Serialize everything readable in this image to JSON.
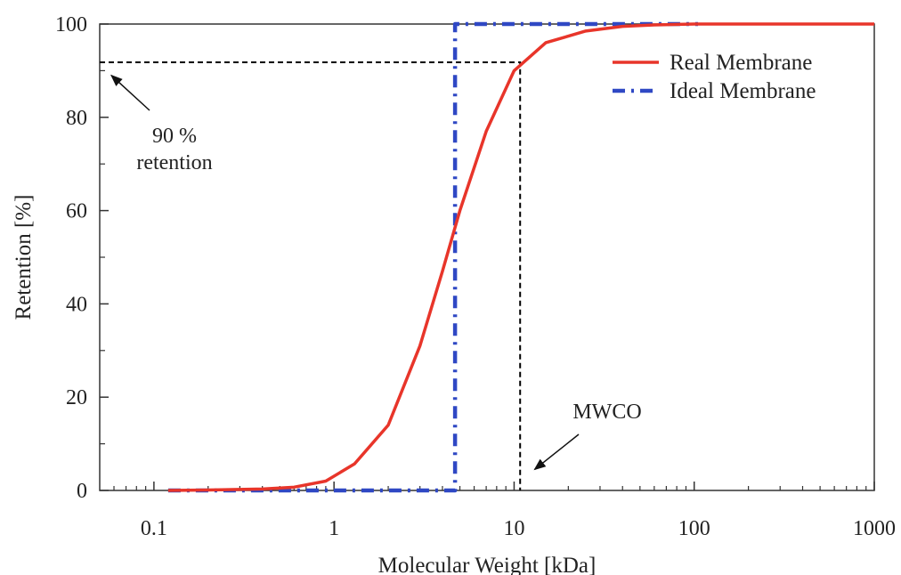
{
  "chart_data": {
    "type": "line",
    "xlabel": "Molecular Weight [kDa]",
    "ylabel": "Retention [%]",
    "x_scale": "log",
    "xlim": [
      0.05,
      1000
    ],
    "ylim": [
      0,
      100
    ],
    "x_ticks": [
      {
        "value": 0.1,
        "label": "0.1"
      },
      {
        "value": 1,
        "label": "1"
      },
      {
        "value": 10,
        "label": "10"
      },
      {
        "value": 100,
        "label": "100"
      },
      {
        "value": 1000,
        "label": "1000"
      }
    ],
    "y_ticks": [
      {
        "value": 0,
        "label": "0"
      },
      {
        "value": 20,
        "label": "20"
      },
      {
        "value": 40,
        "label": "40"
      },
      {
        "value": 60,
        "label": "60"
      },
      {
        "value": 80,
        "label": "80"
      },
      {
        "value": 100,
        "label": "100"
      }
    ],
    "y_minor_ticks": [
      10,
      30,
      50,
      70,
      90
    ],
    "grid": false,
    "legend_position": "top-right",
    "series": [
      {
        "name": "Real Membrane",
        "style": "solid",
        "color": "#e8352a",
        "x": [
          0.12,
          0.2,
          0.4,
          0.6,
          0.9,
          1.3,
          2,
          3,
          4,
          5,
          7,
          10,
          15,
          25,
          40,
          60,
          100,
          1000
        ],
        "y": [
          0,
          0.1,
          0.3,
          0.7,
          2,
          5.7,
          14,
          31,
          47,
          60,
          77,
          90,
          96,
          98.5,
          99.5,
          99.8,
          100,
          100
        ]
      },
      {
        "name": "Ideal Membrane",
        "style": "dash-dot",
        "color": "#2f48c4",
        "x": [
          0.12,
          4.7,
          4.7,
          105
        ],
        "y": [
          0,
          0,
          100,
          100
        ]
      }
    ],
    "reference_lines": [
      {
        "points": [
          [
            0.05,
            91.8
          ],
          [
            10.8,
            91.8
          ],
          [
            10.8,
            0
          ]
        ],
        "style": "dashed",
        "color": "#000000"
      }
    ],
    "annotations": [
      {
        "text_lines": [
          "90 %",
          "retention"
        ],
        "arrow_to": [
          0.058,
          89
        ]
      },
      {
        "text_lines": [
          "MWCO"
        ],
        "arrow_to": [
          13,
          4.5
        ]
      }
    ]
  }
}
